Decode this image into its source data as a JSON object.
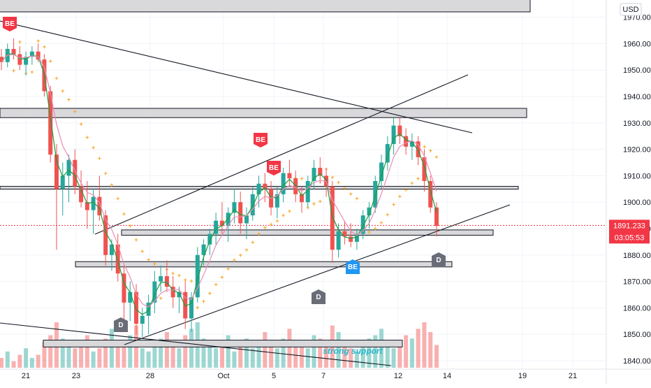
{
  "chart_data": {
    "type": "candlestick",
    "currency": "USD",
    "y_axis": {
      "min": 1840,
      "max": 1970,
      "ticks": [
        1840,
        1850,
        1860,
        1870,
        1880,
        1890,
        1900,
        1910,
        1920,
        1930,
        1940,
        1950,
        1960,
        1970
      ],
      "tick_labels": [
        "1840.000",
        "1850.000",
        "1860.000",
        "1870.000",
        "1880.000",
        "1890.000",
        "1900.000",
        "1910.000",
        "1920.000",
        "1930.000",
        "1940.000",
        "1950.000",
        "1960.000",
        "1970.000"
      ]
    },
    "x_axis": {
      "tick_labels": [
        "21",
        "23",
        "28",
        "Oct",
        "5",
        "7",
        "12",
        "14",
        "19",
        "21"
      ]
    },
    "last_price": {
      "value": 1891.233,
      "label": "1891.233",
      "countdown": "03:05:53",
      "color": "#f23645"
    },
    "colors": {
      "up": "#26a69a",
      "down": "#ef5350",
      "wma_fast": "#1b9e3e",
      "wma_slow": "#e88db5",
      "trail": "#f6a623",
      "zone_fill": "#d9d9dc"
    },
    "ohlc": [
      [
        1955,
        1958,
        1950,
        1953
      ],
      [
        1953,
        1960,
        1951,
        1958
      ],
      [
        1958,
        1962,
        1954,
        1956
      ],
      [
        1956,
        1959,
        1950,
        1952
      ],
      [
        1952,
        1957,
        1948,
        1955
      ],
      [
        1955,
        1959,
        1952,
        1957
      ],
      [
        1957,
        1960,
        1953,
        1954
      ],
      [
        1954,
        1956,
        1940,
        1942
      ],
      [
        1942,
        1944,
        1915,
        1918
      ],
      [
        1918,
        1922,
        1882,
        1905
      ],
      [
        1905,
        1915,
        1895,
        1910
      ],
      [
        1910,
        1918,
        1900,
        1916
      ],
      [
        1916,
        1920,
        1903,
        1906
      ],
      [
        1906,
        1912,
        1898,
        1900
      ],
      [
        1900,
        1908,
        1890,
        1897
      ],
      [
        1897,
        1905,
        1888,
        1902
      ],
      [
        1902,
        1910,
        1893,
        1895
      ],
      [
        1895,
        1897,
        1876,
        1880
      ],
      [
        1880,
        1886,
        1874,
        1884
      ],
      [
        1884,
        1888,
        1870,
        1873
      ],
      [
        1873,
        1876,
        1855,
        1862
      ],
      [
        1862,
        1870,
        1855,
        1866
      ],
      [
        1866,
        1869,
        1850,
        1854
      ],
      [
        1854,
        1860,
        1849,
        1857
      ],
      [
        1857,
        1865,
        1850,
        1862
      ],
      [
        1862,
        1874,
        1858,
        1870
      ],
      [
        1870,
        1876,
        1866,
        1872
      ],
      [
        1872,
        1878,
        1866,
        1868
      ],
      [
        1868,
        1872,
        1860,
        1864
      ],
      [
        1864,
        1868,
        1858,
        1866
      ],
      [
        1866,
        1870,
        1852,
        1856
      ],
      [
        1856,
        1866,
        1851,
        1864
      ],
      [
        1864,
        1883,
        1862,
        1880
      ],
      [
        1880,
        1886,
        1876,
        1884
      ],
      [
        1884,
        1890,
        1880,
        1888
      ],
      [
        1888,
        1896,
        1884,
        1893
      ],
      [
        1893,
        1900,
        1888,
        1891
      ],
      [
        1891,
        1898,
        1885,
        1896
      ],
      [
        1896,
        1905,
        1892,
        1900
      ],
      [
        1900,
        1904,
        1888,
        1892
      ],
      [
        1892,
        1898,
        1886,
        1895
      ],
      [
        1895,
        1906,
        1893,
        1903
      ],
      [
        1903,
        1910,
        1898,
        1907
      ],
      [
        1907,
        1911,
        1900,
        1905
      ],
      [
        1905,
        1908,
        1895,
        1898
      ],
      [
        1898,
        1906,
        1894,
        1903
      ],
      [
        1903,
        1913,
        1900,
        1911
      ],
      [
        1911,
        1916,
        1906,
        1909
      ],
      [
        1909,
        1912,
        1900,
        1903
      ],
      [
        1903,
        1906,
        1896,
        1900
      ],
      [
        1900,
        1910,
        1898,
        1908
      ],
      [
        1908,
        1916,
        1905,
        1913
      ],
      [
        1913,
        1917,
        1907,
        1910
      ],
      [
        1910,
        1913,
        1902,
        1906
      ],
      [
        1906,
        1908,
        1877,
        1882
      ],
      [
        1882,
        1892,
        1879,
        1889
      ],
      [
        1889,
        1893,
        1884,
        1887
      ],
      [
        1887,
        1892,
        1883,
        1885
      ],
      [
        1885,
        1890,
        1882,
        1888
      ],
      [
        1888,
        1897,
        1886,
        1895
      ],
      [
        1895,
        1900,
        1890,
        1898
      ],
      [
        1898,
        1910,
        1896,
        1908
      ],
      [
        1908,
        1918,
        1905,
        1915
      ],
      [
        1915,
        1925,
        1912,
        1922
      ],
      [
        1922,
        1932,
        1918,
        1929
      ],
      [
        1929,
        1932,
        1922,
        1925
      ],
      [
        1925,
        1928,
        1918,
        1921
      ],
      [
        1921,
        1926,
        1916,
        1923
      ],
      [
        1923,
        1925,
        1914,
        1917
      ],
      [
        1917,
        1920,
        1904,
        1908
      ],
      [
        1908,
        1910,
        1896,
        1898
      ],
      [
        1898,
        1900,
        1887,
        1891
      ]
    ],
    "volume": [
      3,
      5,
      2,
      4,
      6,
      3,
      4,
      8,
      10,
      14,
      9,
      7,
      6,
      8,
      10,
      5,
      6,
      9,
      12,
      8,
      7,
      10,
      13,
      6,
      5,
      7,
      9,
      11,
      8,
      6,
      10,
      12,
      14,
      9,
      7,
      6,
      8,
      10,
      5,
      7,
      9,
      6,
      8,
      11,
      7,
      6,
      9,
      12,
      8,
      7,
      6,
      10,
      9,
      8,
      13,
      11,
      7,
      6,
      5,
      8,
      9,
      10,
      12,
      7,
      6,
      8,
      10,
      9,
      12,
      14,
      11,
      7
    ],
    "horizontal_zones": [
      {
        "top": 1935.5,
        "bottom": 1932
      },
      {
        "top": 1906,
        "bottom": 1905
      },
      {
        "top": 1889.5,
        "bottom": 1887.5
      },
      {
        "top": 1877.5,
        "bottom": 1875.5
      },
      {
        "top": 1847.8,
        "bottom": 1845.2
      }
    ],
    "markers": [
      {
        "label": "BE",
        "type": "sell"
      },
      {
        "label": "BE",
        "type": "sell"
      },
      {
        "label": "BE",
        "type": "sell"
      },
      {
        "label": "BE",
        "type": "buy"
      },
      {
        "label": "D",
        "type": "neutral"
      },
      {
        "label": "D",
        "type": "neutral"
      },
      {
        "label": "D",
        "type": "neutral"
      }
    ],
    "annotation": "strong support"
  }
}
